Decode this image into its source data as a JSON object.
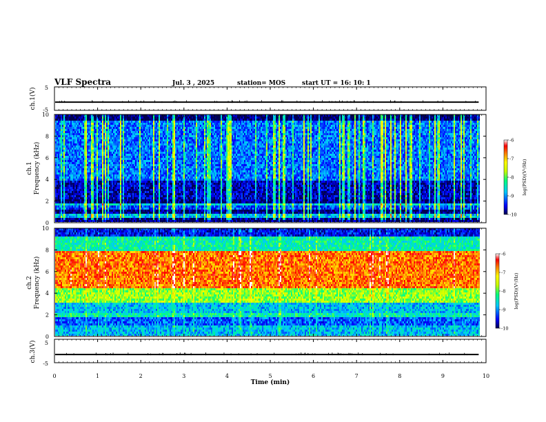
{
  "header": {
    "title": "VLF Spectra",
    "date": "Jul.  3  , 2025",
    "station": "station= MOS",
    "start": "start  UT  =   16: 10: 1"
  },
  "chart_data": [
    {
      "type": "line",
      "name": "ch1-voltage",
      "ylabel": "ch.1(V)",
      "ylim": [
        -5,
        5
      ],
      "yticks": [
        "5",
        "-5"
      ],
      "level": -1.5
    },
    {
      "type": "heatmap",
      "name": "ch1-spectrogram",
      "ylabel": "ch.1\nFrequency (kHz)",
      "ylim": [
        0,
        10
      ],
      "yticks": [
        "0",
        "2",
        "4",
        "6",
        "8",
        "10"
      ],
      "colorbar": {
        "label": "log(PSD)(V²/Hz)",
        "range": [
          -10,
          -6
        ],
        "ticks": [
          "-6",
          "-7",
          "-8",
          "-9",
          "-10"
        ]
      }
    },
    {
      "type": "heatmap",
      "name": "ch2-spectrogram",
      "ylabel": "ch.2\nFrequency (kHz)",
      "ylim": [
        0,
        10
      ],
      "yticks": [
        "0",
        "2",
        "4",
        "6",
        "8",
        "10"
      ],
      "colorbar": {
        "label": "log(PSD)(V²/Hz)",
        "range": [
          -10,
          -6
        ],
        "ticks": [
          "-6",
          "-7",
          "-8",
          "-9",
          "-10"
        ]
      }
    },
    {
      "type": "line",
      "name": "ch3-voltage",
      "ylabel": "ch.3(V)",
      "ylim": [
        -5,
        5
      ],
      "yticks": [
        "5",
        "-5"
      ],
      "level": -1.5
    }
  ],
  "xaxis": {
    "label": "Time  (min)",
    "xlim": [
      0,
      10
    ],
    "ticks": [
      "0",
      "1",
      "2",
      "3",
      "4",
      "5",
      "6",
      "7",
      "8",
      "9",
      "10"
    ],
    "data_end": 9.83
  }
}
